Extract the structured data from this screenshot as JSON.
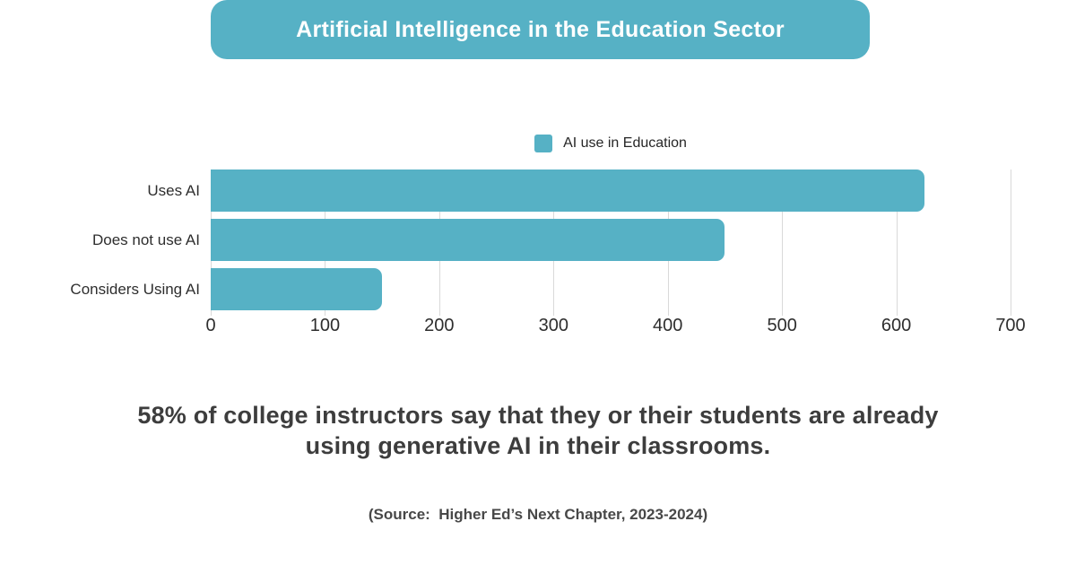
{
  "banner": {
    "title": "Artificial Intelligence in the Education Sector"
  },
  "legend": {
    "label": "AI use in Education"
  },
  "chart_data": {
    "type": "bar",
    "orientation": "horizontal",
    "series_name": "AI use in Education",
    "categories": [
      "Uses AI",
      "Does not use AI",
      "Considers Using AI"
    ],
    "values": [
      625,
      450,
      150
    ],
    "xlim": [
      0,
      700
    ],
    "xticks": [
      0,
      100,
      200,
      300,
      400,
      500,
      600,
      700
    ],
    "grid": true,
    "legend_position": "top-center",
    "bar_color": "#56b1c5",
    "gridline_color": "#d9d9d9"
  },
  "statement": {
    "line1": "58% of college instructors say that they or their students are already",
    "line2": "using generative AI in their classrooms."
  },
  "source": {
    "text": "(Source:  Higher Ed’s Next Chapter, 2023-2024)"
  },
  "colors": {
    "accent": "#56b1c5",
    "axis_text": "#2e2e2e",
    "statement_text": "#3d3d3d",
    "background": "#ffffff"
  }
}
